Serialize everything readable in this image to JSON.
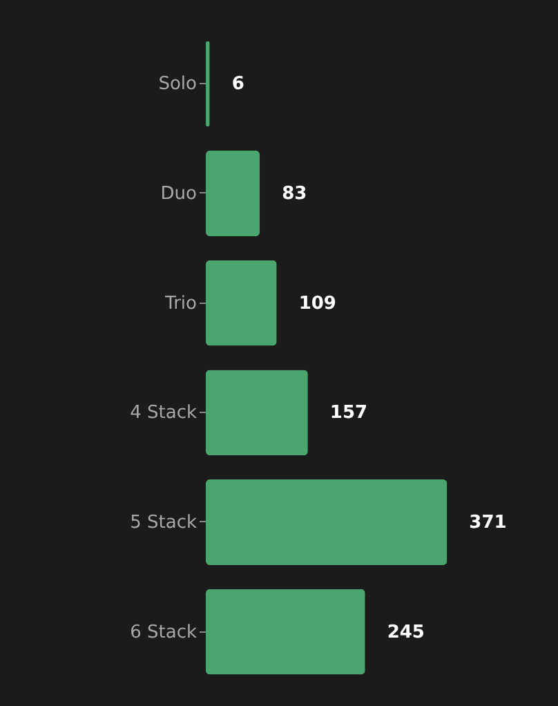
{
  "chart_data": {
    "type": "bar",
    "orientation": "horizontal",
    "categories": [
      "Solo",
      "Duo",
      "Trio",
      "4 Stack",
      "5 Stack",
      "6 Stack"
    ],
    "values": [
      6,
      83,
      109,
      157,
      371,
      245
    ],
    "color": "#4aa66e",
    "data_labels": true,
    "tick_labels": "y",
    "grid": false
  }
}
